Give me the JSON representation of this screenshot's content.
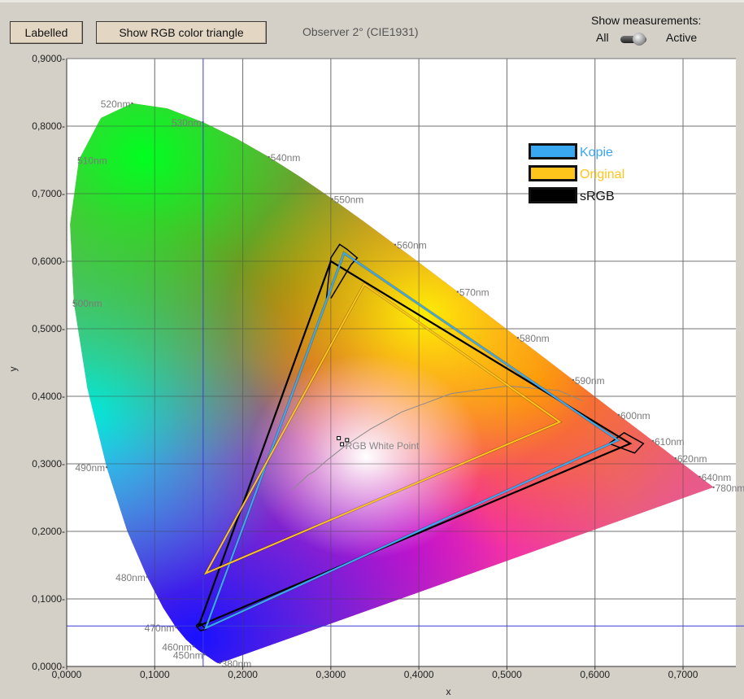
{
  "toolbar": {
    "labelled_button": "Labelled",
    "rgb_triangle_button": "Show RGB color triangle",
    "observer_text": "Observer 2° (CIE1931)",
    "measurements_title": "Show measurements:",
    "measurements_all": "All",
    "measurements_active": "Active"
  },
  "chart_data": {
    "type": "scatter",
    "xlabel": "x",
    "ylabel": "y",
    "xlim": [
      0,
      0.76
    ],
    "ylim": [
      0,
      0.9
    ],
    "x_ticks": [
      "0,0000",
      "0,1000",
      "0,2000",
      "0,3000",
      "0,4000",
      "0,5000",
      "0,6000",
      "0,7000"
    ],
    "y_ticks": [
      "0,0000-",
      "0,1000-",
      "0,2000-",
      "0,3000-",
      "0,4000-",
      "0,5000-",
      "0,6000-",
      "0,7000-",
      "0,8000-",
      "0,9000-"
    ],
    "grid": true,
    "legend_position": "top-right",
    "legend": [
      {
        "label": "Kopie",
        "color": "#3aa8f0"
      },
      {
        "label": "Original",
        "color": "#ffc41c"
      },
      {
        "label": "sRGB",
        "color": "#000000"
      }
    ],
    "spectral_locus": [
      [
        0.1741,
        0.005
      ],
      [
        0.1738,
        0.0049
      ],
      [
        0.1736,
        0.0049
      ],
      [
        0.1733,
        0.0048
      ],
      [
        0.173,
        0.0048
      ],
      [
        0.1726,
        0.0048
      ],
      [
        0.1721,
        0.0048
      ],
      [
        0.1714,
        0.0051
      ],
      [
        0.1703,
        0.0058
      ],
      [
        0.1689,
        0.0069
      ],
      [
        0.1669,
        0.0086
      ],
      [
        0.1644,
        0.0109
      ],
      [
        0.1611,
        0.0138
      ],
      [
        0.1566,
        0.0177
      ],
      [
        0.151,
        0.0227
      ],
      [
        0.144,
        0.0297
      ],
      [
        0.1355,
        0.0399
      ],
      [
        0.1241,
        0.0578
      ],
      [
        0.1096,
        0.0868
      ],
      [
        0.0913,
        0.1327
      ],
      [
        0.0687,
        0.2007
      ],
      [
        0.0454,
        0.295
      ],
      [
        0.0235,
        0.4127
      ],
      [
        0.0082,
        0.5384
      ],
      [
        0.0039,
        0.6548
      ],
      [
        0.0139,
        0.7502
      ],
      [
        0.0389,
        0.812
      ],
      [
        0.0743,
        0.8338
      ],
      [
        0.1142,
        0.8262
      ],
      [
        0.1547,
        0.8059
      ],
      [
        0.1929,
        0.7816
      ],
      [
        0.2296,
        0.7543
      ],
      [
        0.2658,
        0.7243
      ],
      [
        0.3016,
        0.6923
      ],
      [
        0.3373,
        0.6589
      ],
      [
        0.3731,
        0.6245
      ],
      [
        0.4087,
        0.5896
      ],
      [
        0.4441,
        0.5547
      ],
      [
        0.4788,
        0.5202
      ],
      [
        0.5125,
        0.4866
      ],
      [
        0.5448,
        0.4544
      ],
      [
        0.5752,
        0.4242
      ],
      [
        0.6029,
        0.3965
      ],
      [
        0.627,
        0.3725
      ],
      [
        0.6482,
        0.3514
      ],
      [
        0.6658,
        0.334
      ],
      [
        0.6801,
        0.3197
      ],
      [
        0.6915,
        0.3083
      ],
      [
        0.7006,
        0.2993
      ],
      [
        0.7079,
        0.292
      ],
      [
        0.714,
        0.2859
      ],
      [
        0.719,
        0.2809
      ],
      [
        0.723,
        0.277
      ],
      [
        0.726,
        0.274
      ],
      [
        0.7283,
        0.2717
      ],
      [
        0.73,
        0.27
      ],
      [
        0.7311,
        0.2689
      ],
      [
        0.732,
        0.268
      ],
      [
        0.7327,
        0.2673
      ],
      [
        0.7334,
        0.2666
      ],
      [
        0.734,
        0.266
      ],
      [
        0.7344,
        0.2656
      ],
      [
        0.7346,
        0.2654
      ],
      [
        0.7347,
        0.2653
      ]
    ],
    "wavelength_labels": [
      {
        "text": "520nm",
        "x": 0.0743,
        "y": 0.8338
      },
      {
        "text": "530nm",
        "x": 0.1547,
        "y": 0.8059
      },
      {
        "text": "540nm",
        "x": 0.2296,
        "y": 0.7543
      },
      {
        "text": "550nm",
        "x": 0.3016,
        "y": 0.6923
      },
      {
        "text": "560nm",
        "x": 0.3731,
        "y": 0.6245
      },
      {
        "text": "570nm",
        "x": 0.4441,
        "y": 0.5547
      },
      {
        "text": "580nm",
        "x": 0.5125,
        "y": 0.4866
      },
      {
        "text": "590nm",
        "x": 0.5752,
        "y": 0.4242
      },
      {
        "text": "600nm",
        "x": 0.627,
        "y": 0.3725
      },
      {
        "text": "610nm",
        "x": 0.6658,
        "y": 0.334
      },
      {
        "text": "620nm",
        "x": 0.6915,
        "y": 0.3083
      },
      {
        "text": "640nm",
        "x": 0.719,
        "y": 0.2809
      },
      {
        "text": "780nm",
        "x": 0.7347,
        "y": 0.2653
      },
      {
        "text": "510nm",
        "x": 0.0139,
        "y": 0.7502
      },
      {
        "text": "500nm",
        "x": 0.0082,
        "y": 0.5384
      },
      {
        "text": "490nm",
        "x": 0.0454,
        "y": 0.295
      },
      {
        "text": "480nm",
        "x": 0.0913,
        "y": 0.1327
      },
      {
        "text": "470nm",
        "x": 0.1241,
        "y": 0.0578
      },
      {
        "text": "460nm",
        "x": 0.144,
        "y": 0.0297
      },
      {
        "text": "450nm",
        "x": 0.1566,
        "y": 0.0177
      },
      {
        "text": "380nm",
        "x": 0.1741,
        "y": 0.005
      }
    ],
    "series": [
      {
        "name": "sRGB",
        "color": "#000000",
        "points": [
          [
            0.64,
            0.33
          ],
          [
            0.3,
            0.6
          ],
          [
            0.15,
            0.06
          ]
        ]
      },
      {
        "name": "Kopie",
        "color": "#3aa8f0",
        "points": [
          [
            0.626,
            0.335
          ],
          [
            0.315,
            0.612
          ],
          [
            0.158,
            0.057
          ]
        ]
      },
      {
        "name": "Original",
        "color": "#ffc41c",
        "points": [
          [
            0.56,
            0.362
          ],
          [
            0.338,
            0.566
          ],
          [
            0.158,
            0.138
          ]
        ]
      }
    ],
    "measurement_markers": {
      "sRGB": [
        [
          [
            0.295,
            0.545
          ],
          [
            0.3,
            0.605
          ],
          [
            0.31,
            0.625
          ],
          [
            0.318,
            0.618
          ],
          [
            0.33,
            0.605
          ],
          [
            0.323,
            0.595
          ],
          [
            0.3,
            0.545
          ]
        ],
        [
          [
            0.616,
            0.33
          ],
          [
            0.633,
            0.346
          ],
          [
            0.655,
            0.33
          ],
          [
            0.645,
            0.316
          ],
          [
            0.616,
            0.33
          ]
        ],
        [
          [
            0.147,
            0.06
          ],
          [
            0.152,
            0.053
          ],
          [
            0.158,
            0.055
          ],
          [
            0.151,
            0.065
          ],
          [
            0.147,
            0.06
          ]
        ]
      ]
    },
    "white_point": {
      "label": "RGB White Point",
      "points": [
        [
          0.3127,
          0.329
        ],
        [
          0.309,
          0.338
        ],
        [
          0.3184,
          0.3351
        ]
      ]
    },
    "planckian_locus": [
      [
        0.2565,
        0.2614
      ],
      [
        0.2642,
        0.2715
      ],
      [
        0.2745,
        0.2838
      ],
      [
        0.2806,
        0.2883
      ],
      [
        0.2952,
        0.3048
      ],
      [
        0.3135,
        0.3237
      ],
      [
        0.3221,
        0.3318
      ],
      [
        0.3451,
        0.3516
      ],
      [
        0.3805,
        0.3768
      ],
      [
        0.4369,
        0.4041
      ],
      [
        0.5008,
        0.4153
      ],
      [
        0.5585,
        0.4086
      ],
      [
        0.5861,
        0.3931
      ]
    ],
    "crosshair": {
      "x": 0.155,
      "y": 0.06
    }
  }
}
